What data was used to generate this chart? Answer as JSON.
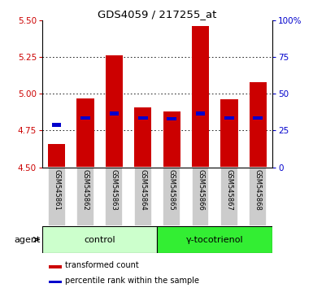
{
  "title": "GDS4059 / 217255_at",
  "samples": [
    "GSM545861",
    "GSM545862",
    "GSM545863",
    "GSM545864",
    "GSM545865",
    "GSM545866",
    "GSM545867",
    "GSM545868"
  ],
  "red_values": [
    4.66,
    4.97,
    5.26,
    4.91,
    4.88,
    5.46,
    4.96,
    5.08
  ],
  "blue_values": [
    4.79,
    4.835,
    4.865,
    4.835,
    4.83,
    4.865,
    4.835,
    4.835
  ],
  "bar_bottom": 4.5,
  "ylim": [
    4.5,
    5.5
  ],
  "yticks_left": [
    4.5,
    4.75,
    5.0,
    5.25,
    5.5
  ],
  "yticks_right": [
    0,
    25,
    50,
    75,
    100
  ],
  "right_ylim": [
    0,
    100
  ],
  "control_label": "control",
  "treatment_label": "γ-tocotrienol",
  "agent_label": "agent",
  "legend_red": "transformed count",
  "legend_blue": "percentile rank within the sample",
  "bar_color": "#cc0000",
  "blue_color": "#0000cc",
  "bar_width": 0.6,
  "grid_color": "#000000",
  "sample_bg": "#cccccc",
  "control_bg": "#ccffcc",
  "treatment_bg": "#33ee33",
  "plot_bg": "#ffffff",
  "left_tick_color": "#cc0000",
  "right_tick_color": "#0000cc"
}
